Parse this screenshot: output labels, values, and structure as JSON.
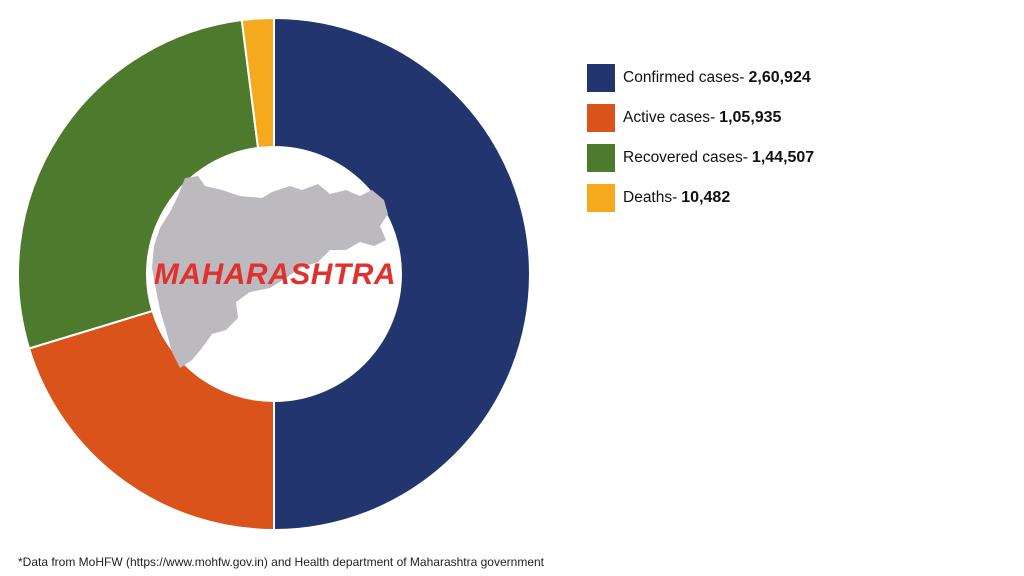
{
  "chart_data": {
    "type": "pie",
    "subtype": "donut",
    "title": "",
    "center_label": "MAHARASHTRA",
    "categories": [
      "Confirmed cases",
      "Active cases",
      "Recovered cases",
      "Deaths"
    ],
    "values": [
      260924,
      105935,
      144507,
      10482
    ],
    "display_values": [
      "2,60,924",
      "1,05,935",
      "1,44,507",
      "10,482"
    ],
    "colors": [
      "#22356e",
      "#d9531a",
      "#4e7a2e",
      "#f5a91c"
    ],
    "legend_position": "right",
    "start_angle_deg": 0,
    "direction": "clockwise"
  },
  "legend": [
    {
      "label": "Confirmed cases-",
      "value": "2,60,924",
      "color": "#22356e"
    },
    {
      "label": "Active cases-",
      "value": "1,05,935",
      "color": "#d9531a"
    },
    {
      "label": "Recovered cases-",
      "value": "1,44,507",
      "color": "#4e7a2e"
    },
    {
      "label": "Deaths-",
      "value": "10,482",
      "color": "#f5a91c"
    }
  ],
  "center_label": "MAHARASHTRA",
  "footnote": "*Data from MoHFW (https://www.mohfw.gov.in) and Health department of Maharashtra government"
}
